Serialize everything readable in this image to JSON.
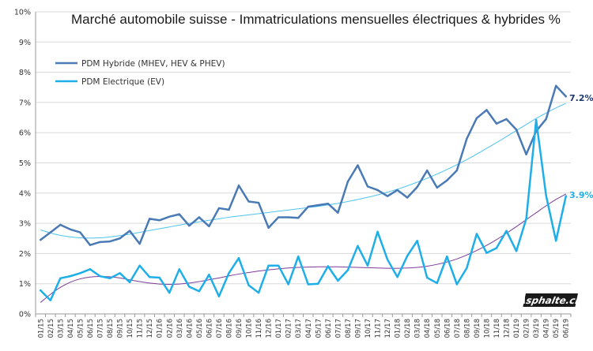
{
  "chart_data": {
    "type": "line",
    "title": "Marché automobile suisse - Immatriculations mensuelles électriques & hybrides %",
    "xlabel": "",
    "ylabel": "",
    "ylim": [
      0,
      10
    ],
    "y_ticks": [
      "0%",
      "1%",
      "2%",
      "3%",
      "4%",
      "5%",
      "6%",
      "7%",
      "8%",
      "9%",
      "10%"
    ],
    "grid": true,
    "legend_position": "top-left",
    "categories": [
      "01/15",
      "02/15",
      "03/15",
      "04/15",
      "05/15",
      "06/15",
      "07/15",
      "08/15",
      "09/15",
      "10/15",
      "11/15",
      "12/15",
      "01/16",
      "02/16",
      "03/16",
      "04/16",
      "05/16",
      "06/16",
      "07/16",
      "08/16",
      "09/16",
      "10/16",
      "11/16",
      "12/16",
      "01/17",
      "02/17",
      "03/17",
      "04/17",
      "05/17",
      "06/17",
      "07/17",
      "08/17",
      "09/17",
      "10/17",
      "11/17",
      "12/17",
      "01/18",
      "02/18",
      "03/18",
      "04/18",
      "05/18",
      "06/18",
      "07/18",
      "08/18",
      "09/18",
      "10/18",
      "11/18",
      "12/18",
      "01/19",
      "02/19",
      "03/19",
      "04/19",
      "05/19",
      "06/19"
    ],
    "x_tick_labels": [
      "01/15",
      "02/15",
      "03/15",
      "04/15",
      "05/15",
      "06/15",
      "07/15",
      "08/15",
      "09/15",
      "10/15",
      "11/15",
      "12/15",
      "01/16",
      "02/16",
      "03/16",
      "04/16",
      "05/16",
      "06/16",
      "07/16",
      "08/16",
      "09/16",
      "10/16",
      "11/16",
      "12/16",
      "01/17",
      "02/17",
      "03/17",
      "04/17",
      "05/17",
      "06/17",
      "07/17",
      "08/17",
      "09/17",
      "10/17",
      "11/17",
      "12/17",
      "01/18",
      "02/18",
      "03/18",
      "04/18",
      "05/18",
      "06/18",
      "07/18",
      "08/18",
      "09/18",
      "10/18",
      "11/18",
      "12/18",
      "01/19",
      "02/19",
      "03/19",
      "04/19",
      "05/19",
      "06/19"
    ],
    "series": [
      {
        "name": "PDM Hybride (MHEV, HEV & PHEV)",
        "color": "#4a7ab5",
        "values": [
          2.45,
          2.7,
          2.95,
          2.8,
          2.7,
          2.28,
          2.38,
          2.4,
          2.5,
          2.75,
          2.32,
          3.15,
          3.1,
          3.22,
          3.3,
          2.92,
          3.2,
          2.9,
          3.5,
          3.45,
          4.25,
          3.72,
          3.68,
          2.85,
          3.2,
          3.2,
          3.18,
          3.55,
          3.6,
          3.65,
          3.35,
          4.38,
          4.92,
          4.22,
          4.1,
          3.9,
          4.1,
          3.85,
          4.2,
          4.75,
          4.18,
          4.42,
          4.75,
          5.8,
          6.48,
          6.75,
          6.3,
          6.45,
          6.1,
          5.28,
          6.05,
          6.45,
          7.55,
          7.2
        ]
      },
      {
        "name": "PDM Electrique (EV)",
        "color": "#1eaee8",
        "values": [
          0.78,
          0.45,
          1.18,
          1.25,
          1.35,
          1.48,
          1.25,
          1.18,
          1.35,
          1.05,
          1.6,
          1.22,
          1.2,
          0.7,
          1.48,
          0.9,
          0.75,
          1.3,
          0.58,
          1.35,
          1.85,
          0.95,
          0.7,
          1.6,
          1.6,
          0.98,
          1.9,
          0.98,
          1.0,
          1.58,
          1.1,
          1.45,
          2.25,
          1.6,
          2.72,
          1.8,
          1.22,
          1.92,
          2.42,
          1.2,
          1.02,
          1.9,
          0.98,
          1.52,
          2.65,
          2.02,
          2.18,
          2.75,
          2.08,
          3.15,
          6.42,
          3.92,
          2.42,
          3.9
        ]
      }
    ],
    "trendlines": [
      {
        "series": "PDM Hybride (MHEV, HEV & PHEV)",
        "color": "#4dc3ee",
        "values": [
          2.78,
          2.68,
          2.6,
          2.55,
          2.52,
          2.51,
          2.52,
          2.55,
          2.59,
          2.64,
          2.7,
          2.76,
          2.82,
          2.88,
          2.94,
          3.0,
          3.05,
          3.1,
          3.15,
          3.2,
          3.24,
          3.28,
          3.32,
          3.36,
          3.4,
          3.44,
          3.48,
          3.52,
          3.56,
          3.61,
          3.66,
          3.72,
          3.79,
          3.86,
          3.94,
          4.03,
          4.13,
          4.24,
          4.36,
          4.49,
          4.63,
          4.78,
          4.94,
          5.11,
          5.29,
          5.48,
          5.67,
          5.87,
          6.07,
          6.27,
          6.47,
          6.65,
          6.82,
          6.97
        ]
      },
      {
        "series": "PDM Electrique (EV)",
        "color": "#7c3b98",
        "values": [
          0.38,
          0.65,
          0.88,
          1.05,
          1.16,
          1.22,
          1.24,
          1.23,
          1.19,
          1.13,
          1.07,
          1.02,
          0.99,
          0.98,
          0.99,
          1.02,
          1.07,
          1.13,
          1.19,
          1.26,
          1.32,
          1.37,
          1.42,
          1.46,
          1.49,
          1.52,
          1.54,
          1.55,
          1.56,
          1.56,
          1.56,
          1.55,
          1.54,
          1.53,
          1.52,
          1.51,
          1.51,
          1.52,
          1.54,
          1.58,
          1.64,
          1.72,
          1.82,
          1.95,
          2.1,
          2.27,
          2.46,
          2.67,
          2.89,
          3.12,
          3.35,
          3.58,
          3.79,
          3.97
        ]
      }
    ],
    "annotations": [
      {
        "series": "PDM Hybride (MHEV, HEV & PHEV)",
        "text": "7.2%",
        "color": "#1f3b6b"
      },
      {
        "series": "PDM Electrique (EV)",
        "text": "3.9%",
        "color": "#1eaee8"
      }
    ]
  },
  "watermark": {
    "text": "Asphalte.ch"
  },
  "colors": {
    "grid": "#d9d9d9",
    "axis": "#9a9a9a",
    "watermark_bg": "#1a1a1a"
  }
}
